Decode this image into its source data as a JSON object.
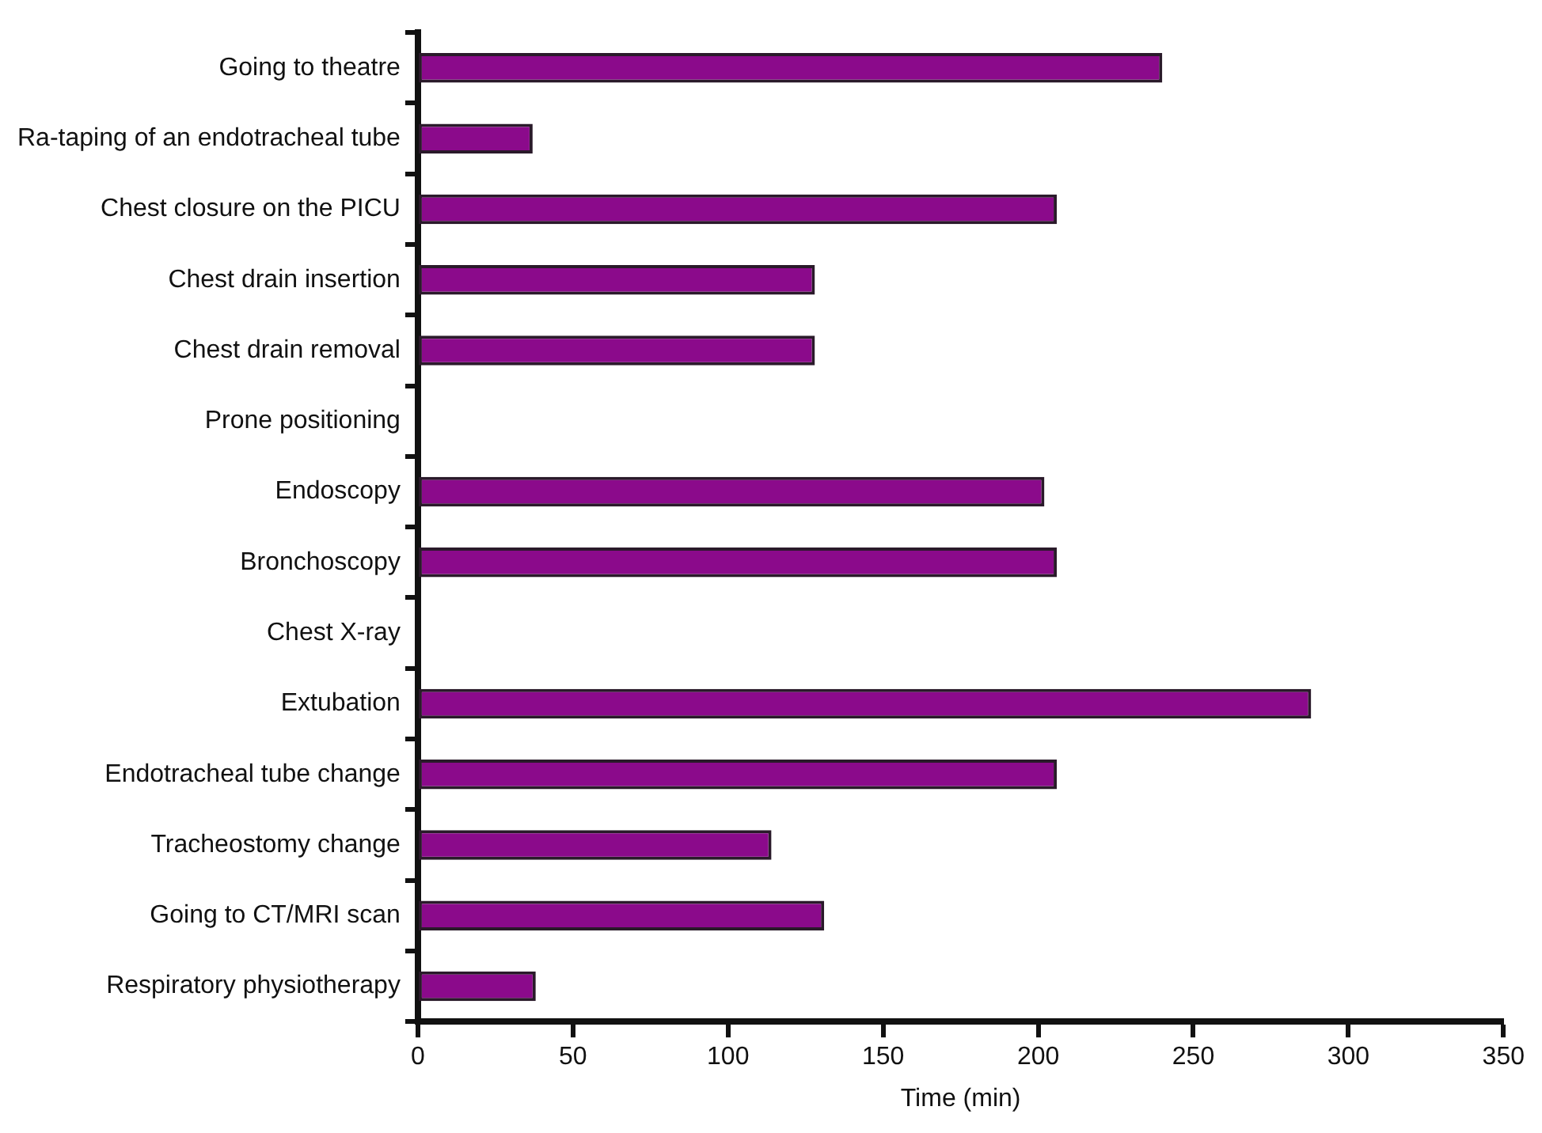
{
  "chart_data": {
    "type": "bar",
    "orientation": "horizontal",
    "xlabel": "Time (min)",
    "categories": [
      "Going to theatre",
      "Ra-taping of an endotracheal tube",
      "Chest closure on the PICU",
      "Chest drain insertion",
      "Chest drain removal",
      "Prone positioning",
      "Endoscopy",
      "Bronchoscopy",
      "Chest X-ray",
      "Extubation",
      "Endotracheal tube change",
      "Tracheostomy change",
      "Going to CT/MRI scan",
      "Respiratory physiotherapy"
    ],
    "values": [
      240,
      37,
      206,
      128,
      128,
      0,
      202,
      206,
      0,
      288,
      206,
      114,
      131,
      38
    ],
    "color": "#8b0a8b",
    "xlim": [
      0,
      350
    ],
    "xticks": [
      0,
      50,
      100,
      150,
      200,
      250,
      300,
      350
    ],
    "grid": false,
    "legend": false
  }
}
